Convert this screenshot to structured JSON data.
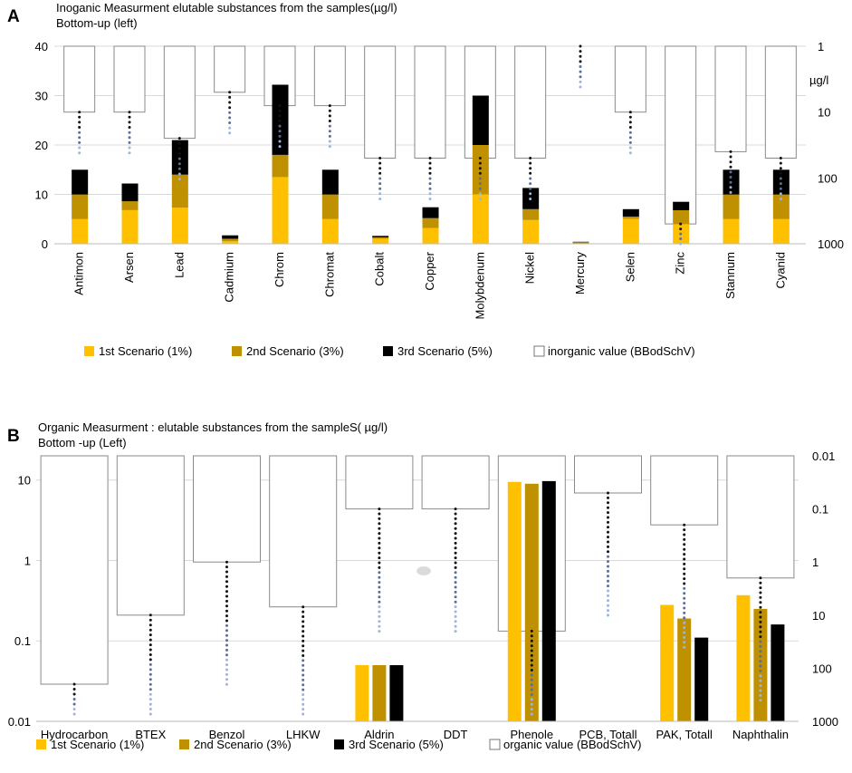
{
  "chart_data": [
    {
      "type": "bar",
      "panel_label": "A",
      "title": "Inoganic Measurment elutable substances from the samples(µg/l)",
      "subtitle": "Bottom-up (left)",
      "stacked": true,
      "ylim": [
        0,
        40
      ],
      "yticks": [
        0,
        10,
        20,
        30,
        40
      ],
      "right_axis": {
        "ticks": [
          "1",
          "10",
          "100",
          "1000"
        ],
        "unit": "µg/l",
        "scale": "log-inverted",
        "range": [
          1,
          1000
        ]
      },
      "categories": [
        "Antimon",
        "Arsen",
        "Lead",
        "Cadmium",
        "Chrom",
        "Chromat",
        "Cobalt",
        "Copper",
        "Molybdenum",
        "Nickel",
        "Mercury",
        "Selen",
        "Zinc",
        "Stannum",
        "Cyanid"
      ],
      "series": [
        {
          "name": "1st Scenario (1%)",
          "color": "#FFC000",
          "values": [
            5,
            6.8,
            7.3,
            0.5,
            13.5,
            5,
            1,
            3.2,
            10,
            4.8,
            0.1,
            5,
            4,
            5,
            5
          ]
        },
        {
          "name": "2nd  Scenario (3%)",
          "color": "#BF9000",
          "values": [
            5,
            1.8,
            6.7,
            0.5,
            4.5,
            5,
            0.3,
            2,
            10,
            2.2,
            0.2,
            0.5,
            2.8,
            5,
            5
          ]
        },
        {
          "name": "3rd  Scenario (5%)",
          "color": "#000000",
          "values": [
            5,
            3.6,
            7,
            0.7,
            14.2,
            5,
            0.3,
            2.2,
            10,
            4.3,
            0.1,
            1.5,
            1.7,
            5,
            5
          ]
        }
      ],
      "limit_series": {
        "name": "inorganic value (BBodSchV)",
        "values": [
          10,
          10,
          25,
          5,
          8,
          8,
          50,
          50,
          50,
          50,
          1,
          10,
          500,
          40,
          50
        ]
      },
      "limit_axis": "right"
    },
    {
      "type": "bar",
      "panel_label": "B",
      "title": "Organic Measurment : elutable substances from the sampleS( µg/l)",
      "subtitle": "Bottom -up (Left)",
      "yscale": "log",
      "ylim": [
        0.01,
        20
      ],
      "yticks": [
        "0.01",
        "0.1",
        "1",
        "10"
      ],
      "right_axis": {
        "ticks": [
          "0.01",
          "0.1",
          "1",
          "10",
          "100",
          "1000"
        ],
        "scale": "log-inverted",
        "range": [
          0.01,
          1000
        ]
      },
      "categories": [
        "Hydrocarbon",
        "BTEX",
        "Benzol",
        "LHKW",
        "Aldrin",
        "DDT",
        "Phenole",
        "PCB, Totall",
        "PAK, Totall",
        "Naphthalin"
      ],
      "series": [
        {
          "name": "1st Scenario (1%)",
          "color": "#FFC000",
          "values": [
            null,
            null,
            null,
            null,
            0.05,
            null,
            9.5,
            null,
            0.28,
            0.37
          ]
        },
        {
          "name": "2nd  Scenario (3%)",
          "color": "#BF9000",
          "values": [
            null,
            null,
            null,
            null,
            0.05,
            null,
            9,
            null,
            0.19,
            0.25
          ]
        },
        {
          "name": "3rd  Scenario (5%)",
          "color": "#000000",
          "values": [
            null,
            null,
            null,
            null,
            0.05,
            null,
            9.7,
            null,
            0.11,
            0.16
          ]
        }
      ],
      "limit_series": {
        "name": "organic value (BBodSchV)",
        "values": [
          200,
          10,
          1,
          7,
          0.1,
          0.1,
          20,
          0.05,
          0.2,
          2
        ]
      },
      "limit_axis": "right"
    }
  ]
}
